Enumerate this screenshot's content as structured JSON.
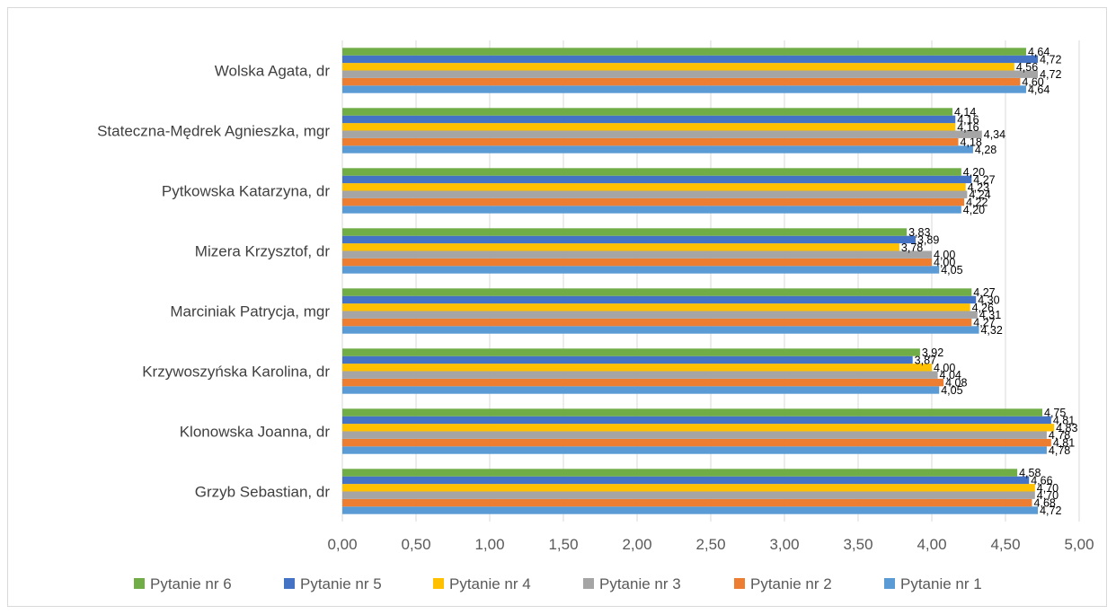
{
  "chart_data": {
    "type": "bar",
    "orientation": "horizontal",
    "categories": [
      "Grzyb Sebastian, dr",
      "Klonowska Joanna, dr",
      "Krzywoszyńska Karolina, dr",
      "Marciniak  Patrycja, mgr",
      "Mizera Krzysztof, dr",
      "Pytkowska Katarzyna, dr",
      "Stateczna-Mędrek Agnieszka, mgr",
      "Wolska Agata, dr"
    ],
    "series": [
      {
        "name": "Pytanie nr 1",
        "color": "#5B9BD5",
        "values": [
          4.72,
          4.78,
          4.05,
          4.32,
          4.05,
          4.2,
          4.28,
          4.64
        ],
        "labels": [
          "4,72",
          "4,78",
          "4,05",
          "4,32",
          "4,05",
          "4,20",
          "4,28",
          "4,64"
        ]
      },
      {
        "name": "Pytanie nr 2",
        "color": "#ED7D31",
        "values": [
          4.68,
          4.81,
          4.08,
          4.27,
          4.0,
          4.22,
          4.18,
          4.6
        ],
        "labels": [
          "4,68",
          "4,81",
          "4,08",
          "4,27",
          "4,00",
          "4,22",
          "4,18",
          "4,60"
        ]
      },
      {
        "name": "Pytanie nr 3",
        "color": "#A5A5A5",
        "values": [
          4.7,
          4.78,
          4.04,
          4.31,
          4.0,
          4.24,
          4.34,
          4.72
        ],
        "labels": [
          "4,70",
          "4,78",
          "4,04",
          "4,31",
          "4,00",
          "4,24",
          "4,34",
          "4,72"
        ]
      },
      {
        "name": "Pytanie nr 4",
        "color": "#FFC000",
        "values": [
          4.7,
          4.83,
          4.0,
          4.26,
          3.78,
          4.23,
          4.16,
          4.56
        ],
        "labels": [
          "4,70",
          "4,83",
          "4,00",
          "4,26",
          "3,78",
          "4,23",
          "4,16",
          "4,56"
        ]
      },
      {
        "name": "Pytanie nr 5",
        "color": "#4472C4",
        "values": [
          4.66,
          4.81,
          3.87,
          4.3,
          3.89,
          4.27,
          4.16,
          4.72
        ],
        "labels": [
          "4,66",
          "4,81",
          "3,87",
          "4,30",
          "3,89",
          "4,27",
          "4,16",
          "4,72"
        ]
      },
      {
        "name": "Pytanie nr 6",
        "color": "#70AD47",
        "values": [
          4.58,
          4.75,
          3.92,
          4.27,
          3.83,
          4.2,
          4.14,
          4.64
        ],
        "labels": [
          "4,58",
          "4,75",
          "3,92",
          "4,27",
          "3,83",
          "4,20",
          "4,14",
          "4,64"
        ]
      }
    ],
    "xlim": [
      0,
      5
    ],
    "xticks": [
      0,
      0.5,
      1,
      1.5,
      2,
      2.5,
      3,
      3.5,
      4,
      4.5,
      5
    ],
    "xtick_labels": [
      "0,00",
      "0,50",
      "1,00",
      "1,50",
      "2,00",
      "2,50",
      "3,00",
      "3,50",
      "4,00",
      "4,50",
      "5,00"
    ],
    "grid": "vertical",
    "title": "",
    "xlabel": "",
    "ylabel": "",
    "legend": {
      "position": "bottom",
      "order": [
        "Pytanie nr 6",
        "Pytanie nr 5",
        "Pytanie nr 4",
        "Pytanie nr 3",
        "Pytanie nr 2",
        "Pytanie nr 1"
      ]
    },
    "gridline_color": "#d9d9d9"
  }
}
